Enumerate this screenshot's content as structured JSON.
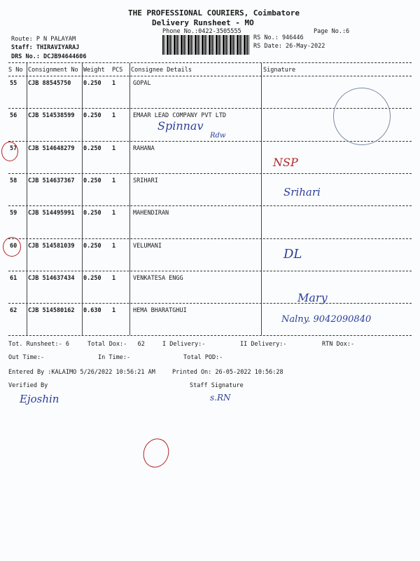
{
  "header": {
    "company": "THE PROFESSIONAL COURIERS, Coimbatore",
    "subtitle": "Delivery Runsheet - MO",
    "phone": "Phone No.:0422-3505555",
    "page_no": "Page No.:6",
    "route": "Route: P N PALAYAM",
    "staff": "Staff: THIRAVIYARAJ",
    "drs": "DRS No.: DCJB94644606",
    "rs_no": "RS No.: 946446",
    "rs_date": "RS Date: 26-May-2022"
  },
  "table": {
    "columns": [
      "S No",
      "Consignment No",
      "Weight",
      "PCS",
      "Consignee Details",
      "Signature"
    ],
    "rows": [
      {
        "sno": "55",
        "consignment": "CJB 88545750",
        "weight": "0.250",
        "pcs": "1",
        "consignee": "GOPAL"
      },
      {
        "sno": "56",
        "consignment": "CJB 514538599",
        "weight": "0.250",
        "pcs": "1",
        "consignee": "EMAAR LEAD COMPANY PVT LTD"
      },
      {
        "sno": "57",
        "consignment": "CJB 514648279",
        "weight": "0.250",
        "pcs": "1",
        "consignee": "RAHANA"
      },
      {
        "sno": "58",
        "consignment": "CJB 514637367",
        "weight": "0.250",
        "pcs": "1",
        "consignee": "SRIHARI"
      },
      {
        "sno": "59",
        "consignment": "CJB 514495991",
        "weight": "0.250",
        "pcs": "1",
        "consignee": "MAHENDIRAN"
      },
      {
        "sno": "60",
        "consignment": "CJB 514581039",
        "weight": "0.250",
        "pcs": "1",
        "consignee": "VELUMANI"
      },
      {
        "sno": "61",
        "consignment": "CJB 514637434",
        "weight": "0.250",
        "pcs": "1",
        "consignee": "VENKATESA ENGG"
      },
      {
        "sno": "62",
        "consignment": "CJB 514580162",
        "weight": "0.630",
        "pcs": "1",
        "consignee": "HEMA BHARATGHUI"
      }
    ]
  },
  "handwriting": {
    "row56_note": "Spinnav",
    "row56_note2": "Rdw",
    "row57_sig": "NSP",
    "row58_sig": "Srihari",
    "row60_sig": "DL",
    "row62_sig": "Mary",
    "row62_note": "Nalny. 9042090840",
    "verified_sig": "Ejoshin",
    "staff_sig": "s.RN"
  },
  "footer": {
    "tot_runsheet": "Tot. Runsheet:- 6",
    "total_dox": "Total Dox:-   62",
    "i_delivery": "I Delivery:-",
    "ii_delivery": "II Delivery:-",
    "rtn_dox": "RTN Dox:-",
    "out_time": "Out Time:-",
    "in_time": "In Time:-",
    "total_pod": "Total POD:-",
    "entered_by": "Entered By :KALAIMO 5/26/2022 10:56:21 AM",
    "printed_on": "Printed On: 26-05-2022 10:56:28",
    "verified_by": "Verified By",
    "staff_signature": "Staff Signature"
  },
  "colors": {
    "ink_blue": "#2a3f9a",
    "ink_red": "#b3262a"
  }
}
